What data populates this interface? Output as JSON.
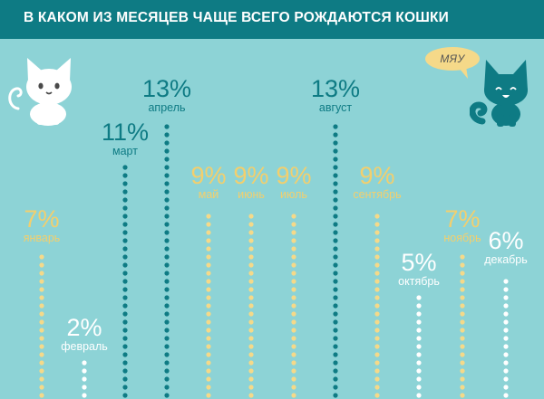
{
  "header": {
    "title": "В КАКОМ ИЗ МЕСЯЦЕВ ЧАЩЕ ВСЕГО РОЖДАЮТСЯ КОШКИ"
  },
  "speech_bubble": {
    "text": "МЯУ"
  },
  "colors": {
    "background": "#8dd3d6",
    "header": "#0e7b84",
    "yellow": "#f5d989",
    "teal": "#0e7b84",
    "white": "#ffffff",
    "yellow_text": "#f3cf6d"
  },
  "chart_data": {
    "type": "bar",
    "title": "В КАКОМ ИЗ МЕСЯЦЕВ ЧАЩЕ ВСЕГО РОЖДАЮТСЯ КОШКИ",
    "unit": "%",
    "categories": [
      "январь",
      "февраль",
      "март",
      "апрель",
      "май",
      "июнь",
      "июль",
      "август",
      "сентябрь",
      "октябрь",
      "ноябрь",
      "декабрь"
    ],
    "values": [
      7,
      2,
      11,
      13,
      9,
      9,
      9,
      13,
      9,
      5,
      7,
      6
    ],
    "labels": [
      "7%",
      "2%",
      "11%",
      "13%",
      "9%",
      "9%",
      "9%",
      "13%",
      "9%",
      "5%",
      "7%",
      "6%"
    ],
    "bar_colors": [
      "yellow",
      "white",
      "teal",
      "teal",
      "yellow",
      "yellow",
      "yellow",
      "teal",
      "yellow",
      "white",
      "yellow",
      "white"
    ],
    "label_colors": [
      "yellow_text",
      "white",
      "teal",
      "teal",
      "yellow_text",
      "yellow_text",
      "yellow_text",
      "teal",
      "yellow_text",
      "white",
      "yellow_text",
      "white"
    ],
    "bar_style": "dotted vertical columns",
    "ylim": [
      0,
      14
    ]
  }
}
